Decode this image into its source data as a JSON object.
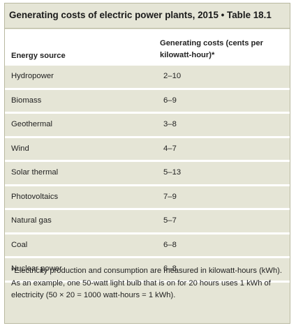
{
  "title": "Generating costs of electric power plants, 2015 • Table 18.1",
  "columns": {
    "source": "Energy source",
    "cost": "Generating costs (cents per kilowatt-hour)*"
  },
  "rows": [
    {
      "source": "Hydropower",
      "cost": "2–10"
    },
    {
      "source": "Biomass",
      "cost": "6–9"
    },
    {
      "source": "Geothermal",
      "cost": "3–8"
    },
    {
      "source": "Wind",
      "cost": "4–7"
    },
    {
      "source": "Solar thermal",
      "cost": "5–13"
    },
    {
      "source": "Photovoltaics",
      "cost": "7–9"
    },
    {
      "source": "Natural gas",
      "cost": "5–7"
    },
    {
      "source": "Coal",
      "cost": "6–8"
    },
    {
      "source": "Nuclear power",
      "cost": "6–8"
    }
  ],
  "footnote": "*Electricity production and consumption are measured in kilowatt-hours (kWh). As an example, one 50-watt light bulb that is on for 20 hours uses 1 kWh of electricity (50 × 20 = 1000 watt-hours = 1 kWh)."
}
